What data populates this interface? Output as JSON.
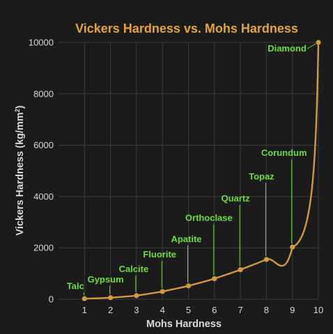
{
  "chart_data": {
    "type": "line",
    "title": "Vickers Hardness vs. Mohs Hardness",
    "xlabel": "Mohs Hardness",
    "ylabel_main": "Vickers Hardness (kg/mm",
    "ylabel_sup": "2",
    "ylabel_tail": ")",
    "xlim": [
      0,
      10
    ],
    "ylim": [
      0,
      10000
    ],
    "x_ticks": [
      "1",
      "2",
      "3",
      "4",
      "5",
      "6",
      "7",
      "8",
      "9",
      "10"
    ],
    "y_ticks": [
      "0",
      "2000",
      "4000",
      "6000",
      "8000",
      "10000"
    ],
    "grid": true,
    "series": [
      {
        "points": [
          {
            "x": 1,
            "y": 20,
            "label": "Talc"
          },
          {
            "x": 2,
            "y": 60,
            "label": "Gypsum"
          },
          {
            "x": 3,
            "y": 140,
            "label": "Calcite"
          },
          {
            "x": 4,
            "y": 300,
            "label": "Fluorite"
          },
          {
            "x": 5,
            "y": 520,
            "label": "Apatite"
          },
          {
            "x": 6,
            "y": 800,
            "label": "Orthoclase"
          },
          {
            "x": 7,
            "y": 1150,
            "label": "Quartz"
          },
          {
            "x": 8,
            "y": 1550,
            "label": "Topaz"
          },
          {
            "x": 9,
            "y": 2030,
            "label": "Corundum"
          },
          {
            "x": 10,
            "y": 10000,
            "label": "Diamond"
          }
        ]
      }
    ]
  },
  "colors": {
    "background": "#1b1b1b",
    "title": "#e3a535",
    "line": "#d49a42",
    "label": "#6fdc3c",
    "axis_text": "#d9d9d9",
    "grid": "#3e3e3e"
  }
}
